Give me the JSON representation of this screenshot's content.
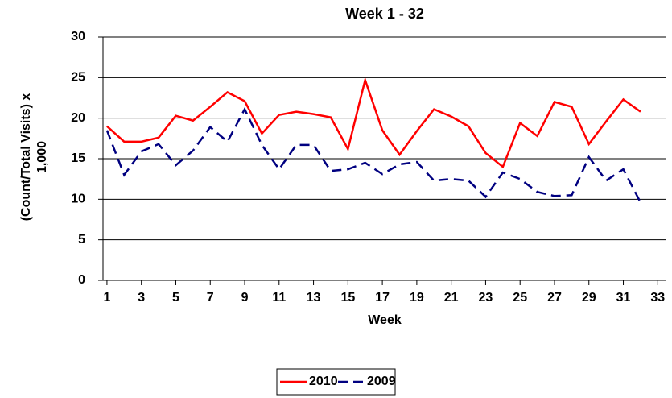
{
  "chart_data": {
    "type": "line",
    "title": "Week 1 - 32",
    "x_label": "Week",
    "y_label": "(Count/Total Visits) x 1,000",
    "x": [
      1,
      2,
      3,
      4,
      5,
      6,
      7,
      8,
      9,
      10,
      11,
      12,
      13,
      14,
      15,
      16,
      17,
      18,
      19,
      20,
      21,
      22,
      23,
      24,
      25,
      26,
      27,
      28,
      29,
      30,
      31,
      32
    ],
    "series": [
      {
        "name": "2010",
        "color": "#ff0000",
        "dashed": false,
        "values": [
          19.0,
          17.1,
          17.1,
          17.6,
          20.3,
          19.7,
          21.4,
          23.2,
          22.1,
          18.1,
          20.4,
          20.8,
          20.5,
          20.1,
          16.2,
          24.7,
          18.5,
          15.5,
          18.4,
          21.1,
          20.2,
          19.0,
          15.7,
          14.0,
          19.4,
          17.8,
          22.0,
          21.4,
          16.8,
          19.6,
          22.3,
          20.8
        ]
      },
      {
        "name": "2009",
        "color": "#000080",
        "dashed": true,
        "values": [
          18.5,
          13.0,
          15.9,
          16.8,
          14.2,
          16.0,
          18.9,
          17.1,
          21.1,
          16.7,
          13.7,
          16.7,
          16.7,
          13.5,
          13.7,
          14.5,
          13.1,
          14.3,
          14.6,
          12.3,
          12.5,
          12.3,
          10.3,
          13.3,
          12.5,
          10.9,
          10.4,
          10.5,
          15.2,
          12.3,
          13.7,
          9.6
        ]
      }
    ],
    "xlim": [
      0.77,
      33.5
    ],
    "xticks": [
      1,
      3,
      5,
      7,
      9,
      11,
      13,
      15,
      17,
      19,
      21,
      23,
      25,
      27,
      29,
      31,
      33
    ],
    "ylim": [
      0,
      30
    ],
    "yticks": [
      0,
      5,
      10,
      15,
      20,
      25,
      30
    ],
    "grid": true,
    "legend": "bottom"
  }
}
